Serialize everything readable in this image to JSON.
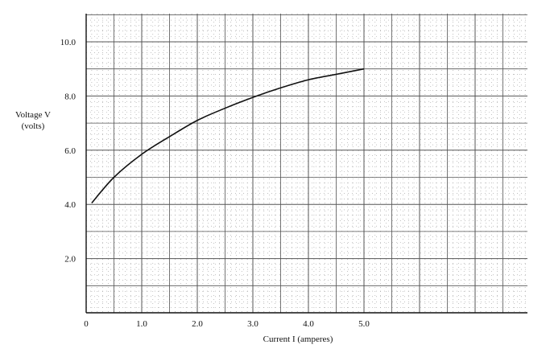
{
  "chart_data": {
    "type": "line",
    "title": "",
    "xlabel": "Current I (amperes)",
    "ylabel_line1": "Voltage  V",
    "ylabel_line2": "(volts)",
    "xlim": [
      0,
      8.0
    ],
    "ylim": [
      0,
      11.0
    ],
    "x_ticks": [
      0,
      1.0,
      2.0,
      3.0,
      4.0,
      5.0
    ],
    "x_tick_labels": [
      "0",
      "1.0",
      "2.0",
      "3.0",
      "4.0",
      "5.0"
    ],
    "y_ticks": [
      2.0,
      4.0,
      6.0,
      8.0,
      10.0
    ],
    "y_tick_labels": [
      "2.0",
      "4.0",
      "6.0",
      "8.0",
      "10.0"
    ],
    "grid": true,
    "legend": "none",
    "series": [
      {
        "x": [
          0.1,
          0.5,
          1.0,
          1.5,
          2.0,
          2.5,
          3.0,
          3.5,
          4.0,
          4.5,
          5.0
        ],
        "y": [
          4.05,
          5.0,
          5.85,
          6.5,
          7.1,
          7.55,
          7.95,
          8.3,
          8.6,
          8.8,
          9.0
        ]
      }
    ],
    "colors": {
      "line": "#111111",
      "grid": "#555555",
      "background": "#ffffff"
    }
  }
}
